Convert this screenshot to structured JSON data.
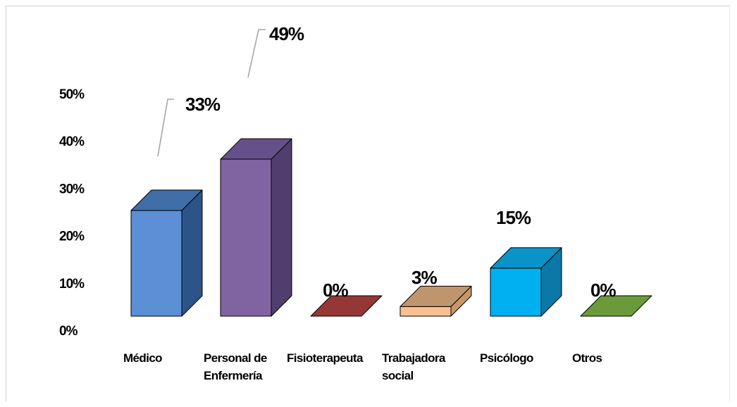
{
  "chart_data": {
    "type": "bar",
    "style": "3d-column",
    "categories": [
      [
        "Médico"
      ],
      [
        "Personal de",
        "Enfermería"
      ],
      [
        "Fisioterapeuta"
      ],
      [
        "Trabajadora",
        "social"
      ],
      [
        "Psicólogo"
      ],
      [
        "Otros"
      ]
    ],
    "values": [
      33,
      49,
      0,
      3,
      15,
      0
    ],
    "data_labels": [
      "33%",
      "49%",
      "0%",
      "3%",
      "15%",
      "0%"
    ],
    "yticks": [
      "0%",
      "10%",
      "20%",
      "30%",
      "40%",
      "50%"
    ],
    "ylim": [
      0,
      50
    ],
    "grid": false,
    "legend": "none",
    "title": "",
    "xlabel": "",
    "ylabel": "",
    "colors": {
      "front": [
        "#5b8fd6",
        "#8064a2",
        "#953735",
        "#fac090",
        "#00b0f0",
        "#77933c"
      ],
      "top": [
        "#3f6ea8",
        "#66508a",
        "#953735",
        "#c0956e",
        "#0a93c8",
        "#6a9a3a"
      ],
      "side": [
        "#2d5488",
        "#503f6e",
        "#7a2a28",
        "#c89668",
        "#0a79a8",
        "#4f6b2c"
      ],
      "leader": "#a6a6a6"
    }
  }
}
